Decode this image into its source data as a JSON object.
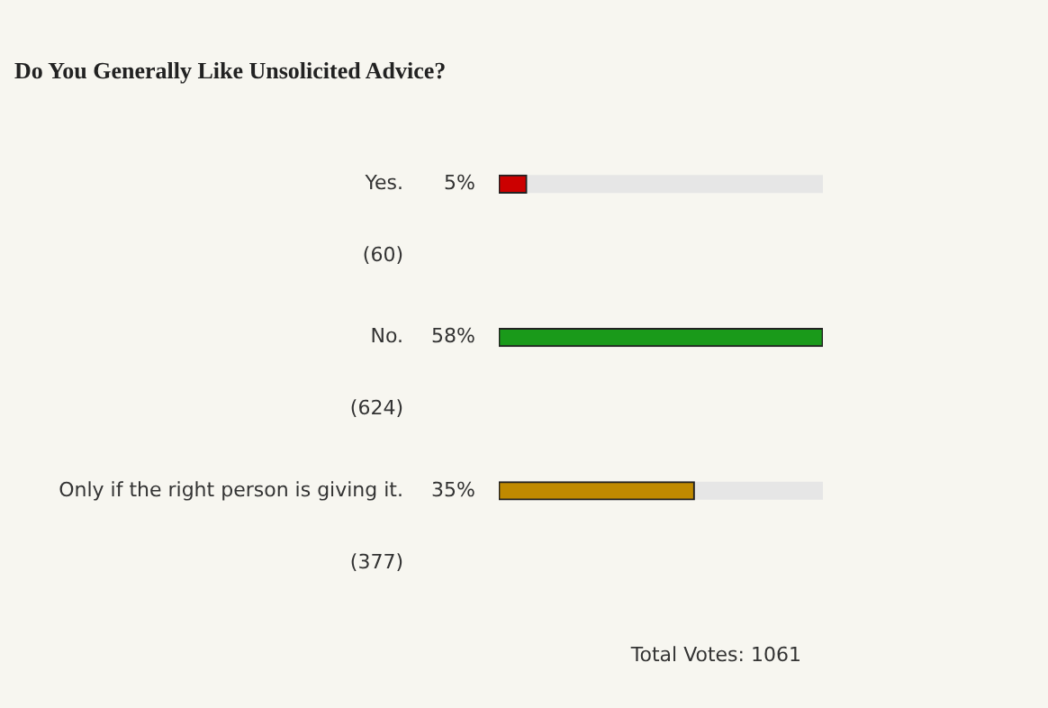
{
  "chart_data": {
    "type": "bar",
    "orientation": "horizontal",
    "title": "Do You Generally Like Unsolicited Advice?",
    "categories": [
      "Yes.",
      "No.",
      "Only if the right person is giving it."
    ],
    "values": [
      5,
      58,
      35
    ],
    "colors": [
      "#cc0000",
      "#1a9a1a",
      "#c08a00"
    ],
    "value_labels": [
      "5%",
      "58%",
      "35%"
    ],
    "xlim": [
      0,
      58
    ],
    "tick_labels": "y",
    "grid": false,
    "legend": false,
    "annotations": [
      "(60)",
      "(624)",
      "(377)",
      "Total Votes: 1061"
    ]
  }
}
